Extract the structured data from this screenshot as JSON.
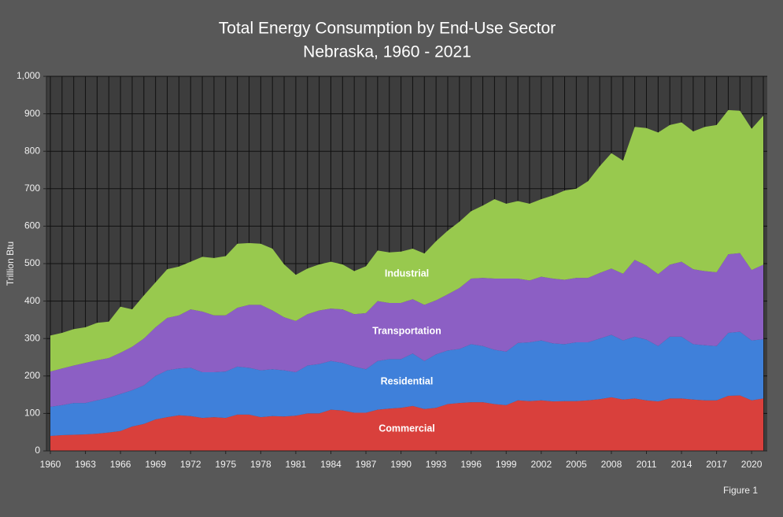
{
  "chart_data": {
    "type": "stacked_area",
    "title": "Total Energy Consumption by End-Use Sector",
    "subtitle": "Nebraska, 1960 - 2021",
    "y_label": "Trillion Btu",
    "annotation": "Figure 1",
    "x": [
      1960,
      1961,
      1962,
      1963,
      1964,
      1965,
      1966,
      1967,
      1968,
      1969,
      1970,
      1971,
      1972,
      1973,
      1974,
      1975,
      1976,
      1977,
      1978,
      1979,
      1980,
      1981,
      1982,
      1983,
      1984,
      1985,
      1986,
      1987,
      1988,
      1989,
      1990,
      1991,
      1992,
      1993,
      1994,
      1995,
      1996,
      1997,
      1998,
      1999,
      2000,
      2001,
      2002,
      2003,
      2004,
      2005,
      2006,
      2007,
      2008,
      2009,
      2010,
      2011,
      2012,
      2013,
      2014,
      2015,
      2016,
      2017,
      2018,
      2019,
      2020,
      2021
    ],
    "xlim": [
      1960,
      2021
    ],
    "xticks": [
      1960,
      1963,
      1966,
      1969,
      1972,
      1975,
      1978,
      1981,
      1984,
      1987,
      1990,
      1993,
      1996,
      1999,
      2002,
      2005,
      2008,
      2011,
      2014,
      2017,
      2020
    ],
    "ylim": [
      0,
      1000
    ],
    "yticks": [
      0,
      100,
      200,
      300,
      400,
      500,
      600,
      700,
      800,
      900,
      {
        "value": 1000,
        "label": "1,000"
      }
    ],
    "grid": true,
    "series": [
      {
        "name": "Commercial",
        "color": "#d9403c",
        "values": [
          40,
          42,
          43,
          44,
          46,
          49,
          53,
          65,
          72,
          84,
          90,
          95,
          93,
          88,
          90,
          88,
          97,
          97,
          90,
          93,
          92,
          94,
          100,
          100,
          110,
          108,
          102,
          102,
          110,
          113,
          115,
          120,
          112,
          115,
          125,
          128,
          130,
          130,
          125,
          122,
          135,
          133,
          135,
          132,
          133,
          133,
          135,
          138,
          143,
          137,
          140,
          135,
          132,
          140,
          140,
          137,
          135,
          135,
          147,
          148,
          135,
          140
        ]
      },
      {
        "name": "Residential",
        "color": "#3f80da",
        "values": [
          78,
          80,
          85,
          84,
          89,
          93,
          99,
          97,
          103,
          116,
          125,
          125,
          129,
          122,
          120,
          124,
          128,
          125,
          125,
          125,
          123,
          116,
          128,
          132,
          130,
          127,
          123,
          116,
          130,
          132,
          130,
          140,
          128,
          143,
          143,
          144,
          155,
          150,
          145,
          143,
          153,
          157,
          160,
          155,
          152,
          157,
          155,
          162,
          167,
          158,
          165,
          162,
          148,
          165,
          165,
          148,
          147,
          145,
          168,
          170,
          160,
          158
        ]
      },
      {
        "name": "Transportation",
        "color": "#8c5fc4",
        "values": [
          94,
          98,
          100,
          107,
          107,
          106,
          110,
          116,
          125,
          130,
          140,
          142,
          156,
          162,
          152,
          150,
          157,
          168,
          175,
          157,
          142,
          137,
          137,
          143,
          140,
          143,
          140,
          150,
          160,
          150,
          150,
          145,
          150,
          144,
          150,
          163,
          175,
          182,
          190,
          195,
          172,
          165,
          170,
          173,
          172,
          172,
          172,
          175,
          177,
          178,
          205,
          198,
          192,
          192,
          200,
          200,
          198,
          197,
          210,
          210,
          188,
          199
        ]
      },
      {
        "name": "Industrial",
        "color": "#98c94e",
        "values": [
          96,
          95,
          97,
          95,
          100,
          97,
          123,
          100,
          115,
          120,
          130,
          130,
          127,
          146,
          153,
          158,
          171,
          165,
          163,
          165,
          141,
          123,
          122,
          123,
          125,
          120,
          115,
          125,
          135,
          135,
          137,
          135,
          137,
          158,
          170,
          177,
          180,
          193,
          212,
          200,
          207,
          205,
          207,
          222,
          238,
          238,
          258,
          285,
          308,
          302,
          355,
          367,
          378,
          373,
          372,
          368,
          385,
          393,
          385,
          380,
          377,
          398
        ]
      }
    ]
  }
}
